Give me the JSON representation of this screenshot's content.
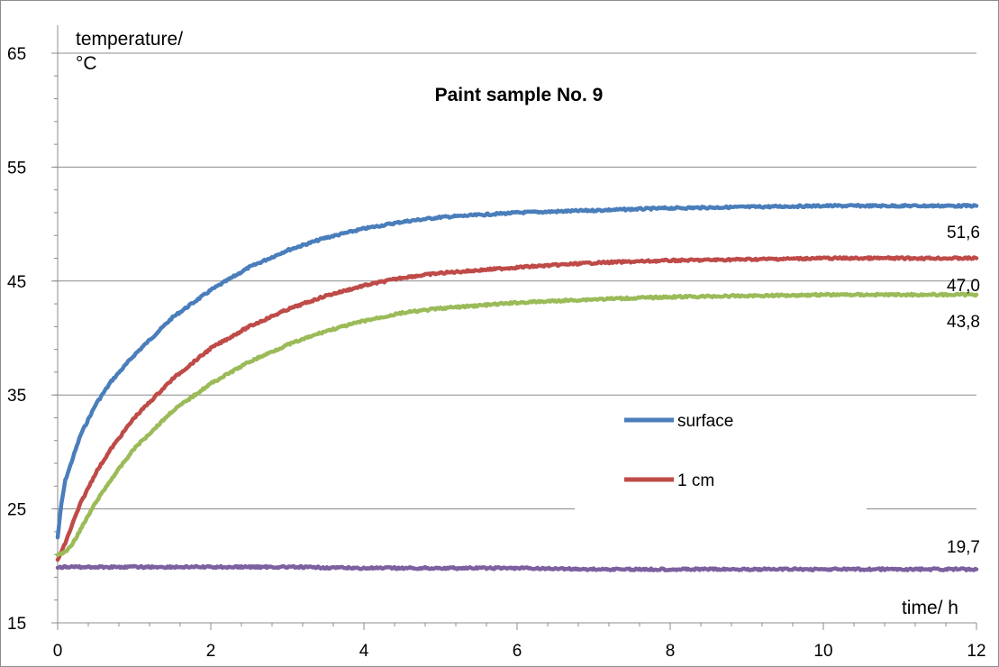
{
  "chart_data": {
    "type": "line",
    "title": "Paint sample No. 9",
    "xlabel": "time/ h",
    "ylabel_line1": "temperature/",
    "ylabel_line2": "°C",
    "xlim": [
      0,
      12
    ],
    "ylim": [
      15,
      65
    ],
    "x_ticks": [
      0,
      2,
      4,
      6,
      8,
      10,
      12
    ],
    "y_ticks": [
      15,
      25,
      35,
      45,
      55,
      65
    ],
    "grid": "horizontal",
    "legend_position": "center-right",
    "legend": [
      {
        "label": "surface",
        "color": "#4a7ebb"
      },
      {
        "label": "1 cm",
        "color": "#be4b48"
      }
    ],
    "end_labels": [
      "51,6",
      "47,0",
      "43,8",
      "19,7"
    ],
    "series": [
      {
        "color": "#4a7ebb",
        "x": [
          0,
          0.05,
          0.1,
          0.2,
          0.3,
          0.5,
          0.7,
          1,
          1.5,
          2,
          2.5,
          3,
          3.5,
          4,
          4.5,
          5,
          6,
          7,
          8,
          9,
          10,
          11,
          11.5,
          12
        ],
        "y": [
          22.5,
          25.5,
          27.5,
          29.5,
          31.5,
          34.2,
          36.2,
          38.5,
          41.8,
          44.2,
          46.2,
          47.7,
          48.8,
          49.6,
          50.2,
          50.6,
          51.0,
          51.2,
          51.4,
          51.5,
          51.6,
          51.6,
          51.6,
          51.6
        ]
      },
      {
        "color": "#be4b48",
        "x": [
          0,
          0.1,
          0.2,
          0.3,
          0.5,
          0.7,
          1,
          1.5,
          2,
          2.5,
          3,
          3.5,
          4,
          4.5,
          5,
          6,
          7,
          8,
          9,
          10,
          11,
          12
        ],
        "y": [
          20.5,
          22.0,
          23.8,
          25.5,
          28.2,
          30.3,
          33.0,
          36.4,
          39.1,
          41.0,
          42.5,
          43.7,
          44.6,
          45.3,
          45.7,
          46.2,
          46.6,
          46.8,
          46.9,
          47.0,
          47.0,
          47.0
        ]
      },
      {
        "color": "#9bbb59",
        "x": [
          0,
          0.1,
          0.2,
          0.3,
          0.5,
          0.7,
          1,
          1.5,
          2,
          2.5,
          3,
          3.5,
          4,
          4.5,
          5,
          6,
          7,
          8,
          9,
          10,
          11,
          12
        ],
        "y": [
          21.0,
          21.2,
          22.0,
          23.2,
          25.6,
          27.6,
          30.3,
          33.6,
          36.0,
          37.9,
          39.4,
          40.6,
          41.5,
          42.2,
          42.6,
          43.1,
          43.4,
          43.6,
          43.7,
          43.8,
          43.8,
          43.8
        ]
      },
      {
        "color": "#7d60a0",
        "x": [
          0,
          1,
          2,
          3,
          4,
          5,
          6,
          7,
          8,
          9,
          10,
          11,
          12
        ],
        "y": [
          19.9,
          19.9,
          19.9,
          19.9,
          19.8,
          19.8,
          19.8,
          19.7,
          19.7,
          19.7,
          19.7,
          19.7,
          19.7
        ]
      }
    ]
  }
}
